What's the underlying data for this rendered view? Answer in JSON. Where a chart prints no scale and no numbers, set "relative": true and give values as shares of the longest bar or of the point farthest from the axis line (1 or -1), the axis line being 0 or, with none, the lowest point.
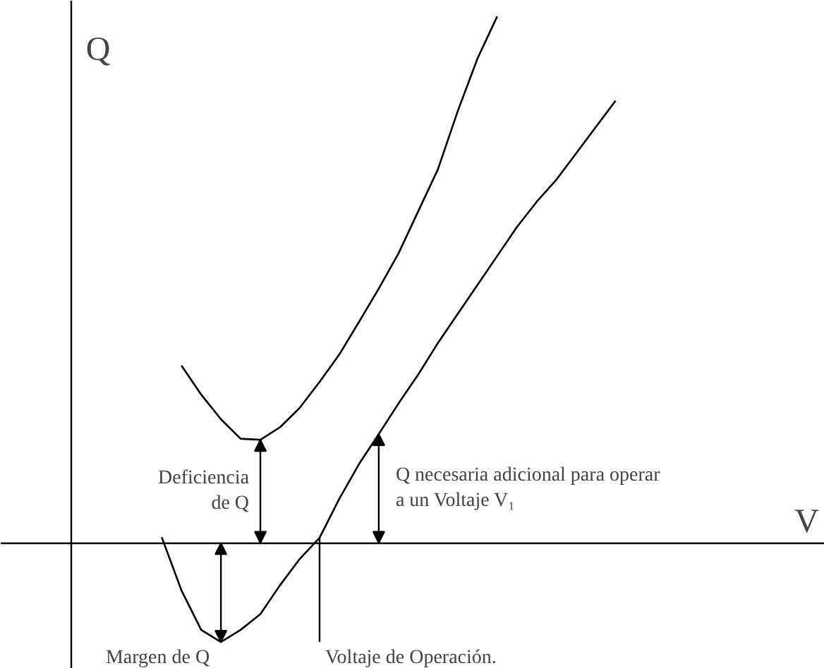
{
  "chart_data": {
    "type": "line",
    "relative": true,
    "xlabel": "V",
    "ylabel": "Q",
    "line_style": "solid",
    "categories": [
      null,
      null,
      null,
      null,
      null,
      null,
      null,
      null,
      null,
      null,
      null,
      null,
      null,
      null,
      null,
      null,
      null,
      null,
      null,
      null,
      null,
      null,
      null,
      null
    ],
    "series": [
      {
        "color": "#000000",
        "values": [
          null,
          0.337,
          0.282,
          0.235,
          0.198,
          0.196,
          0.22,
          0.257,
          0.306,
          0.358,
          0.42,
          0.483,
          0.55,
          0.63,
          0.71,
          0.82,
          0.92,
          1,
          null,
          null,
          null,
          null,
          null,
          null
        ]
      },
      {
        "color": "#000000",
        "values": [
          0.011,
          -0.09,
          -0.165,
          -0.188,
          -0.165,
          -0.135,
          -0.08,
          -0.03,
          0.01,
          0.084,
          0.15,
          0.207,
          0.265,
          0.32,
          0.38,
          0.435,
          0.49,
          0.545,
          0.6,
          0.648,
          0.69,
          0.74,
          0.79,
          0.84
        ]
      }
    ],
    "annotations": [
      "Deficiencia\nde Q",
      "Q necesaria adicional para operar\na un Voltaje V₁",
      "Margen de Q",
      "Voltaje de Operación."
    ]
  }
}
